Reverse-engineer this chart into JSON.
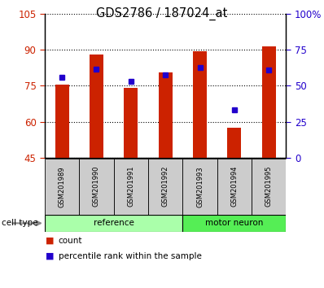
{
  "title": "GDS2786 / 187024_at",
  "samples": [
    "GSM201989",
    "GSM201990",
    "GSM201991",
    "GSM201992",
    "GSM201993",
    "GSM201994",
    "GSM201995"
  ],
  "red_values": [
    75.5,
    88.0,
    74.0,
    80.5,
    89.5,
    57.5,
    91.5
  ],
  "blue_values_y": [
    78.5,
    82.0,
    77.0,
    79.5,
    82.5,
    65.0,
    81.5
  ],
  "ymin": 45,
  "ymax": 105,
  "yticks": [
    45,
    60,
    75,
    90,
    105
  ],
  "y2ticks_pct": [
    0,
    25,
    50,
    75,
    100
  ],
  "y2labels": [
    "0",
    "25",
    "50",
    "75",
    "100%"
  ],
  "red_color": "#cc2200",
  "blue_color": "#2200cc",
  "bar_bottom": 45,
  "group_defs": [
    {
      "label": "reference",
      "start": 0,
      "end": 3,
      "color": "#aaffaa"
    },
    {
      "label": "motor neuron",
      "start": 4,
      "end": 6,
      "color": "#55ee55"
    }
  ]
}
